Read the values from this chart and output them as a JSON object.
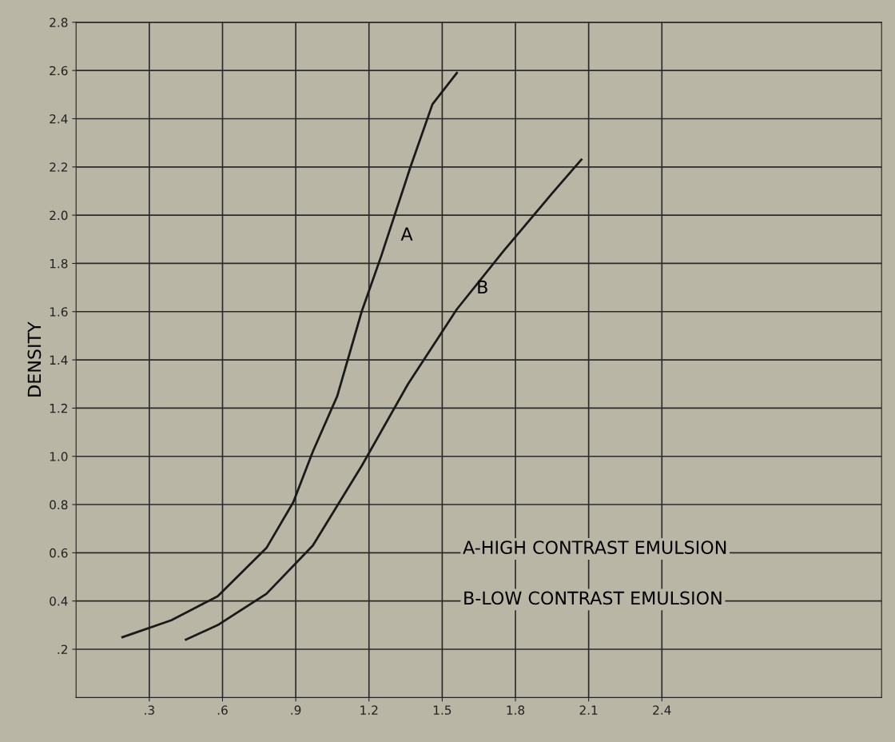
{
  "chart_data": {
    "type": "line",
    "ylabel": "DENSITY",
    "xlim": [
      0,
      3.3
    ],
    "ylim": [
      0,
      2.8
    ],
    "xticks": [
      {
        "value": 0.3,
        "label": ".3"
      },
      {
        "value": 0.6,
        "label": ".6"
      },
      {
        "value": 0.9,
        "label": ".9"
      },
      1.2,
      1.5,
      1.8,
      2.1,
      2.4
    ],
    "yticks": [
      {
        "value": 0.2,
        "label": ".2"
      },
      0.4,
      0.6,
      0.8,
      {
        "value": 1,
        "label": "1.0"
      },
      1.2,
      1.4,
      1.6,
      1.8,
      {
        "value": 2,
        "label": "2.0"
      },
      2.2,
      2.4,
      2.6,
      2.8
    ],
    "grid": true,
    "marker": "none",
    "line_style": "solid",
    "series": [
      {
        "name": "A",
        "color": "#1a1a1a",
        "x": [
          0.19,
          0.39,
          0.58,
          0.78,
          0.89,
          0.97,
          1.07,
          1.17,
          1.25,
          1.37,
          1.46,
          1.56
        ],
        "values": [
          0.25,
          0.32,
          0.42,
          0.62,
          0.81,
          1.02,
          1.25,
          1.6,
          1.83,
          2.2,
          2.46,
          2.59
        ]
      },
      {
        "name": "B",
        "color": "#1a1a1a",
        "x": [
          0.45,
          0.58,
          0.78,
          0.97,
          1.17,
          1.36,
          1.56,
          1.75,
          1.95,
          2.07
        ],
        "values": [
          0.24,
          0.3,
          0.43,
          0.63,
          0.96,
          1.3,
          1.61,
          1.85,
          2.09,
          2.23
        ]
      }
    ],
    "annotations": [
      "A-HIGH CONTRAST EMULSION",
      "B-LOW CONTRAST EMULSION"
    ]
  }
}
